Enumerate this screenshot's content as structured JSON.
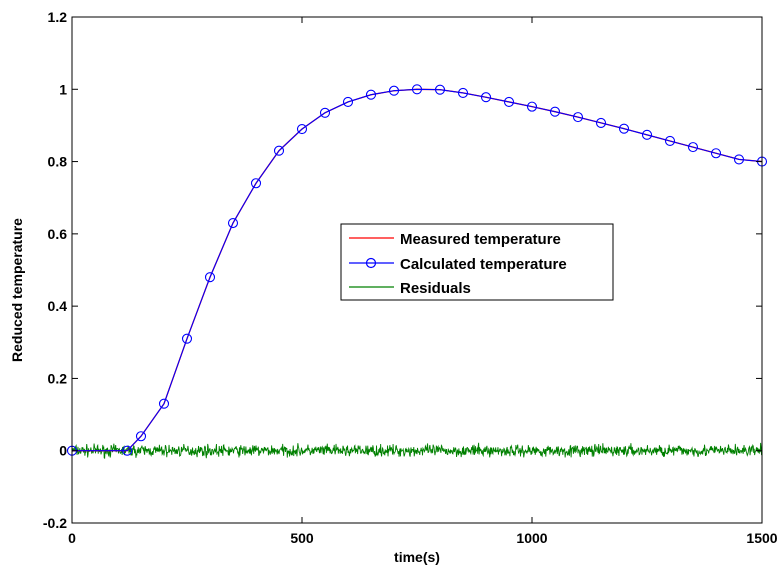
{
  "chart_data": {
    "type": "line",
    "xlabel": "time(s)",
    "ylabel": "Reduced temperature",
    "xlim": [
      0,
      1500
    ],
    "ylim": [
      -0.2,
      1.2
    ],
    "xticks": [
      0,
      500,
      1000,
      1500
    ],
    "yticks": [
      -0.2,
      0,
      0.2,
      0.4,
      0.6,
      0.8,
      1,
      1.2
    ],
    "ytick_labels": [
      "-0.2",
      "0",
      "0.2",
      "0.4",
      "0.6",
      "0.8",
      "1",
      "1.2"
    ],
    "xtick_labels": [
      "0",
      "500",
      "1000",
      "1500"
    ],
    "grid": false,
    "legend_position": "center-right",
    "series": [
      {
        "name": "Measured temperature",
        "color": "#ff0000",
        "style": "line",
        "x": [
          0,
          120,
          150,
          200,
          250,
          300,
          350,
          400,
          450,
          500,
          550,
          600,
          650,
          700,
          750,
          800,
          850,
          900,
          950,
          1000,
          1050,
          1100,
          1150,
          1200,
          1250,
          1300,
          1350,
          1400,
          1450,
          1500
        ],
        "y": [
          0,
          0,
          0.04,
          0.13,
          0.31,
          0.48,
          0.63,
          0.74,
          0.83,
          0.89,
          0.935,
          0.965,
          0.985,
          0.996,
          1.0,
          0.999,
          0.99,
          0.978,
          0.965,
          0.952,
          0.938,
          0.923,
          0.907,
          0.891,
          0.874,
          0.857,
          0.84,
          0.823,
          0.806,
          0.8
        ]
      },
      {
        "name": "Calculated temperature",
        "color": "#0000ff",
        "style": "line-circle",
        "x": [
          0,
          120,
          150,
          200,
          250,
          300,
          350,
          400,
          450,
          500,
          550,
          600,
          650,
          700,
          750,
          800,
          850,
          900,
          950,
          1000,
          1050,
          1100,
          1150,
          1200,
          1250,
          1300,
          1350,
          1400,
          1450,
          1500
        ],
        "y": [
          0,
          0,
          0.04,
          0.13,
          0.31,
          0.48,
          0.63,
          0.74,
          0.83,
          0.89,
          0.935,
          0.965,
          0.985,
          0.996,
          1.0,
          0.999,
          0.99,
          0.978,
          0.965,
          0.952,
          0.938,
          0.923,
          0.907,
          0.891,
          0.874,
          0.857,
          0.84,
          0.823,
          0.806,
          0.8
        ]
      },
      {
        "name": "Residuals",
        "color": "#008000",
        "style": "noise",
        "y_mean": 0,
        "y_amplitude": 0.02,
        "x": [
          0,
          1500
        ]
      }
    ]
  }
}
